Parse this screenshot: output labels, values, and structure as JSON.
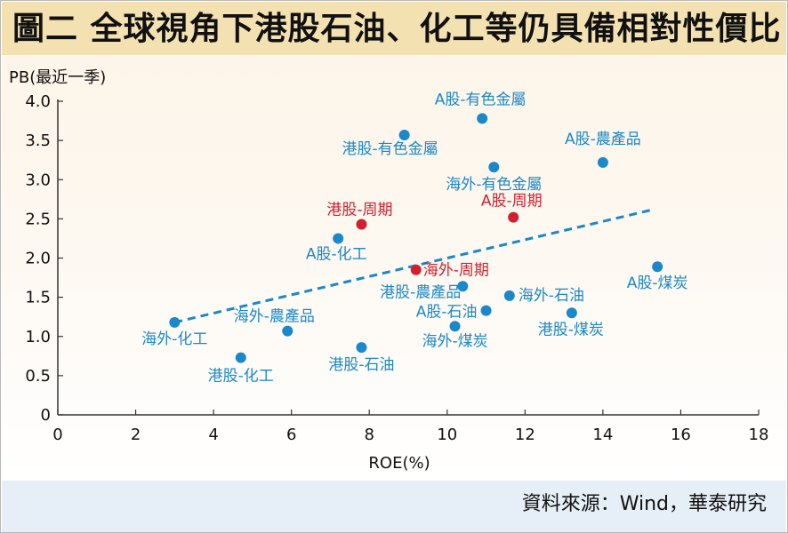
{
  "title": "圖二 全球視角下港股石油、化工等仍具備相對性價比",
  "source": "資料來源：Wind，華泰研究",
  "colors": {
    "blue": "#1b88c9",
    "red": "#d2202e",
    "trend": "#1b88c9"
  },
  "chart_data": {
    "type": "scatter",
    "xlabel": "ROE(%)",
    "ylabel": "PB(最近一季)",
    "xlim": [
      0,
      18
    ],
    "ylim": [
      0,
      4.0
    ],
    "xticks": [
      "0",
      "2",
      "4",
      "6",
      "8",
      "10",
      "12",
      "14",
      "16",
      "18"
    ],
    "yticks": [
      "0",
      "0.5",
      "1.0",
      "1.5",
      "2.0",
      "2.5",
      "3.0",
      "3.5",
      "4.0"
    ],
    "grid": false,
    "trendline": {
      "style": "dashed",
      "x": [
        3.0,
        15.3
      ],
      "y": [
        1.18,
        2.62
      ]
    },
    "points": [
      {
        "label": "A股-有色金屬",
        "x": 10.9,
        "y": 3.78,
        "color": "blue"
      },
      {
        "label": "港股-有色金屬",
        "x": 8.9,
        "y": 3.57,
        "color": "blue"
      },
      {
        "label": "A股-農產品",
        "x": 14.0,
        "y": 3.22,
        "color": "blue"
      },
      {
        "label": "海外-有色金屬",
        "x": 11.2,
        "y": 3.16,
        "color": "blue"
      },
      {
        "label": "港股-周期",
        "x": 7.8,
        "y": 2.43,
        "color": "red"
      },
      {
        "label": "A股-周期",
        "x": 11.7,
        "y": 2.52,
        "color": "red"
      },
      {
        "label": "A股-化工",
        "x": 7.2,
        "y": 2.25,
        "color": "blue"
      },
      {
        "label": "海外-周期",
        "x": 9.2,
        "y": 1.85,
        "color": "red"
      },
      {
        "label": "A股-煤炭",
        "x": 15.4,
        "y": 1.89,
        "color": "blue"
      },
      {
        "label": "港股-農產品",
        "x": 10.4,
        "y": 1.64,
        "color": "blue"
      },
      {
        "label": "海外-石油",
        "x": 11.6,
        "y": 1.52,
        "color": "blue"
      },
      {
        "label": "A股-石油",
        "x": 11.0,
        "y": 1.33,
        "color": "blue"
      },
      {
        "label": "港股-煤炭",
        "x": 13.2,
        "y": 1.3,
        "color": "blue"
      },
      {
        "label": "海外-化工",
        "x": 3.0,
        "y": 1.18,
        "color": "blue"
      },
      {
        "label": "海外-煤炭",
        "x": 10.2,
        "y": 1.13,
        "color": "blue"
      },
      {
        "label": "海外-農產品",
        "x": 5.9,
        "y": 1.07,
        "color": "blue"
      },
      {
        "label": "港股-石油",
        "x": 7.8,
        "y": 0.86,
        "color": "blue"
      },
      {
        "label": "港股-化工",
        "x": 4.7,
        "y": 0.73,
        "color": "blue"
      }
    ]
  }
}
